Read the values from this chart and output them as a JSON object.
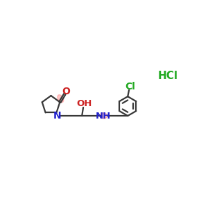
{
  "bg_color": "#ffffff",
  "bond_color": "#383838",
  "n_color": "#2222cc",
  "o_color": "#cc2222",
  "cl_color": "#22aa22",
  "highlight_color": "#ff5555",
  "highlight_alpha": 0.32,
  "figsize": [
    3.0,
    3.0
  ],
  "dpi": 100,
  "xlim": [
    0,
    10
  ],
  "ylim": [
    2,
    8
  ]
}
